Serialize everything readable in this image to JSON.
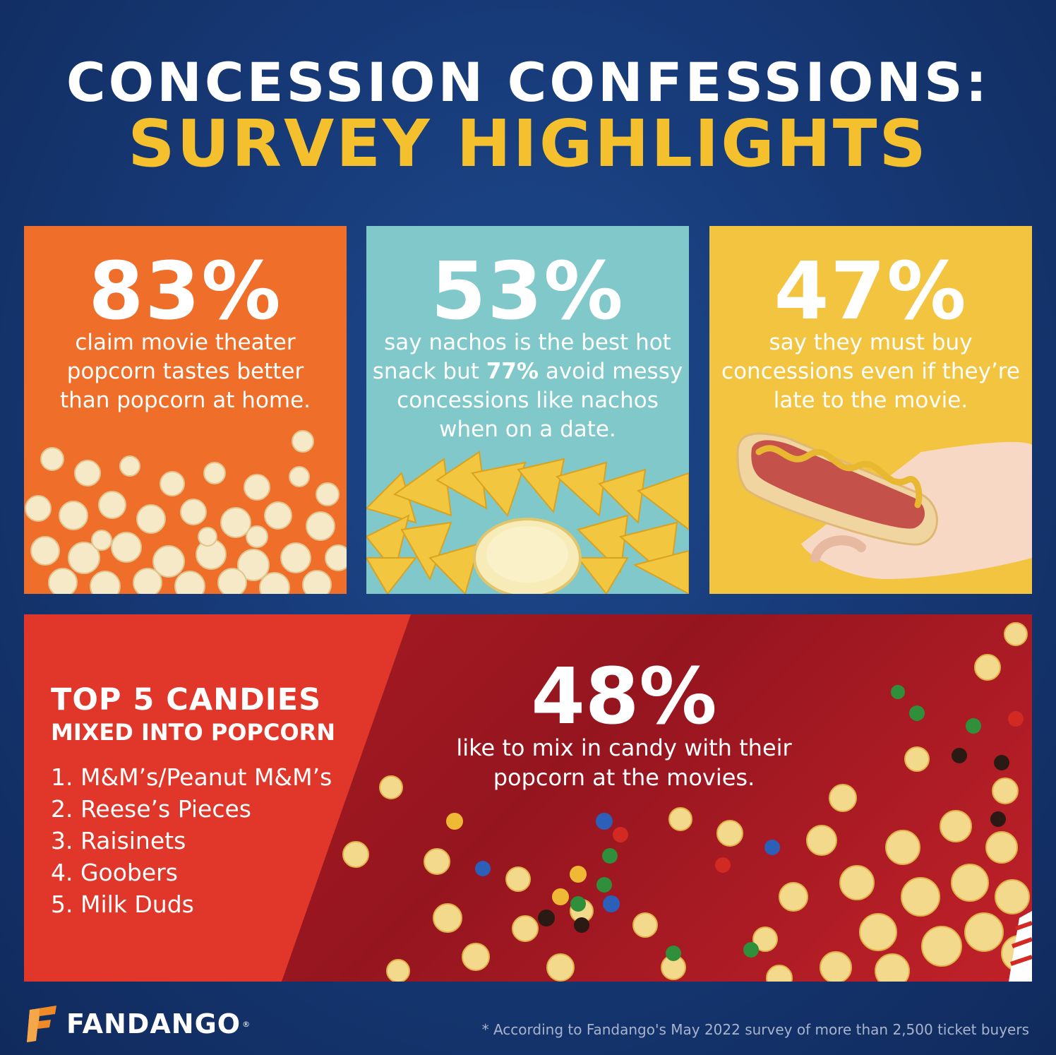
{
  "header": {
    "line1": "CONCESSION CONFESSIONS:",
    "line2": "SURVEY HIGHLIGHTS"
  },
  "cards": [
    {
      "percent": "83%",
      "text": "claim movie theater popcorn tastes better than popcorn at home."
    },
    {
      "percent": "53%",
      "text_before": "say nachos is the best hot snack but ",
      "text_bold": "77%",
      "text_after": " avoid messy concessions like nachos when on a date."
    },
    {
      "percent": "47%",
      "text": "say they must buy concessions even if they’re late to the movie."
    }
  ],
  "candies": {
    "title": "TOP 5 CANDIES",
    "subtitle": "MIXED INTO POPCORN",
    "items": [
      "1. M&M’s/Peanut M&M’s",
      "2. Reese’s Pieces",
      "3. Raisinets",
      "4. Goobers",
      "5. Milk Duds"
    ]
  },
  "mix_stat": {
    "percent": "48%",
    "text": "like to mix in candy with their popcorn at the movies."
  },
  "footer": {
    "brand": "FANDANGO",
    "registered": "®",
    "footnote": "* According to Fandango's May 2022 survey of more than 2,500 ticket buyers"
  },
  "colors": {
    "background": "#173a78",
    "headline_yellow": "#f5c02e",
    "orange_card": "#ee6e2a",
    "teal_card": "#80c8c9",
    "yellow_card": "#f2c440",
    "candy_red": "#e0372a",
    "deep_red": "#a01a22",
    "brand_orange": "#f08a26"
  },
  "icons": [
    "popcorn-image",
    "nachos-image",
    "hotdog-image",
    "candy-popcorn-image",
    "fandango-logo-icon"
  ]
}
